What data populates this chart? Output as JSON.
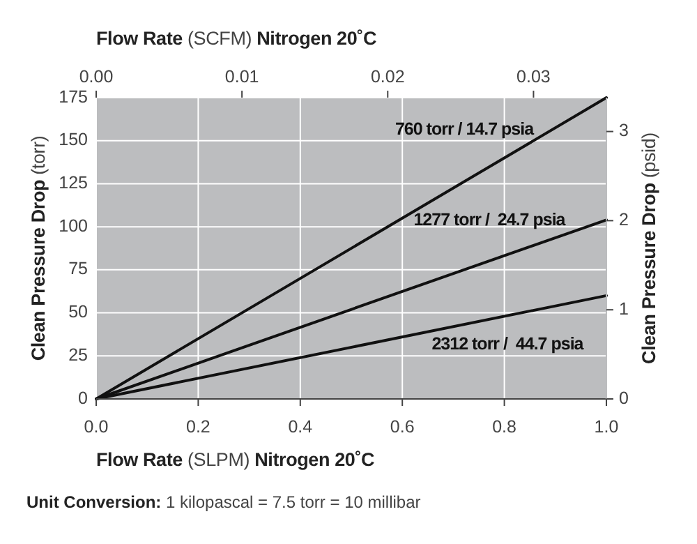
{
  "chart_data": {
    "type": "line",
    "xlabel": "Flow Rate (SLPM) Nitrogen 20˚C",
    "x2label": "Flow Rate (SCFM) Nitrogen 20˚C",
    "ylabel": "Clean Pressure Drop (torr)",
    "y2label": "Clean Pressure Drop (psid)",
    "x": [
      0,
      1
    ],
    "series": [
      {
        "name": "760 torr / 14.7 psia",
        "color": "#111111",
        "values": [
          0,
          175
        ]
      },
      {
        "name": "1277 torr /  24.7 psia",
        "color": "#111111",
        "values": [
          0,
          104
        ]
      },
      {
        "name": "2312 torr /  44.7 psia",
        "color": "#111111",
        "values": [
          0,
          60
        ]
      }
    ],
    "xlim": [
      0,
      1
    ],
    "xticks": [
      {
        "value": 0,
        "label": "0.0"
      },
      0.2,
      0.4,
      0.6,
      0.8,
      {
        "value": 1,
        "label": "1.0"
      }
    ],
    "x2lim": [
      0,
      0.035
    ],
    "x2ticks": [
      {
        "value": 0,
        "label": "0.00"
      },
      0.01,
      0.02,
      0.03
    ],
    "ylim": [
      0,
      175
    ],
    "yticks": [
      0,
      25,
      50,
      75,
      100,
      125,
      150,
      175
    ],
    "y2lim": [
      0,
      3.38
    ],
    "y2ticks": [
      0,
      1,
      2,
      3
    ],
    "grid": true,
    "marker": "none",
    "line_style": "solid",
    "annotations": [
      "Unit Conversion: 1 kilopascal = 7.5 torr = 10 millibar"
    ]
  }
}
